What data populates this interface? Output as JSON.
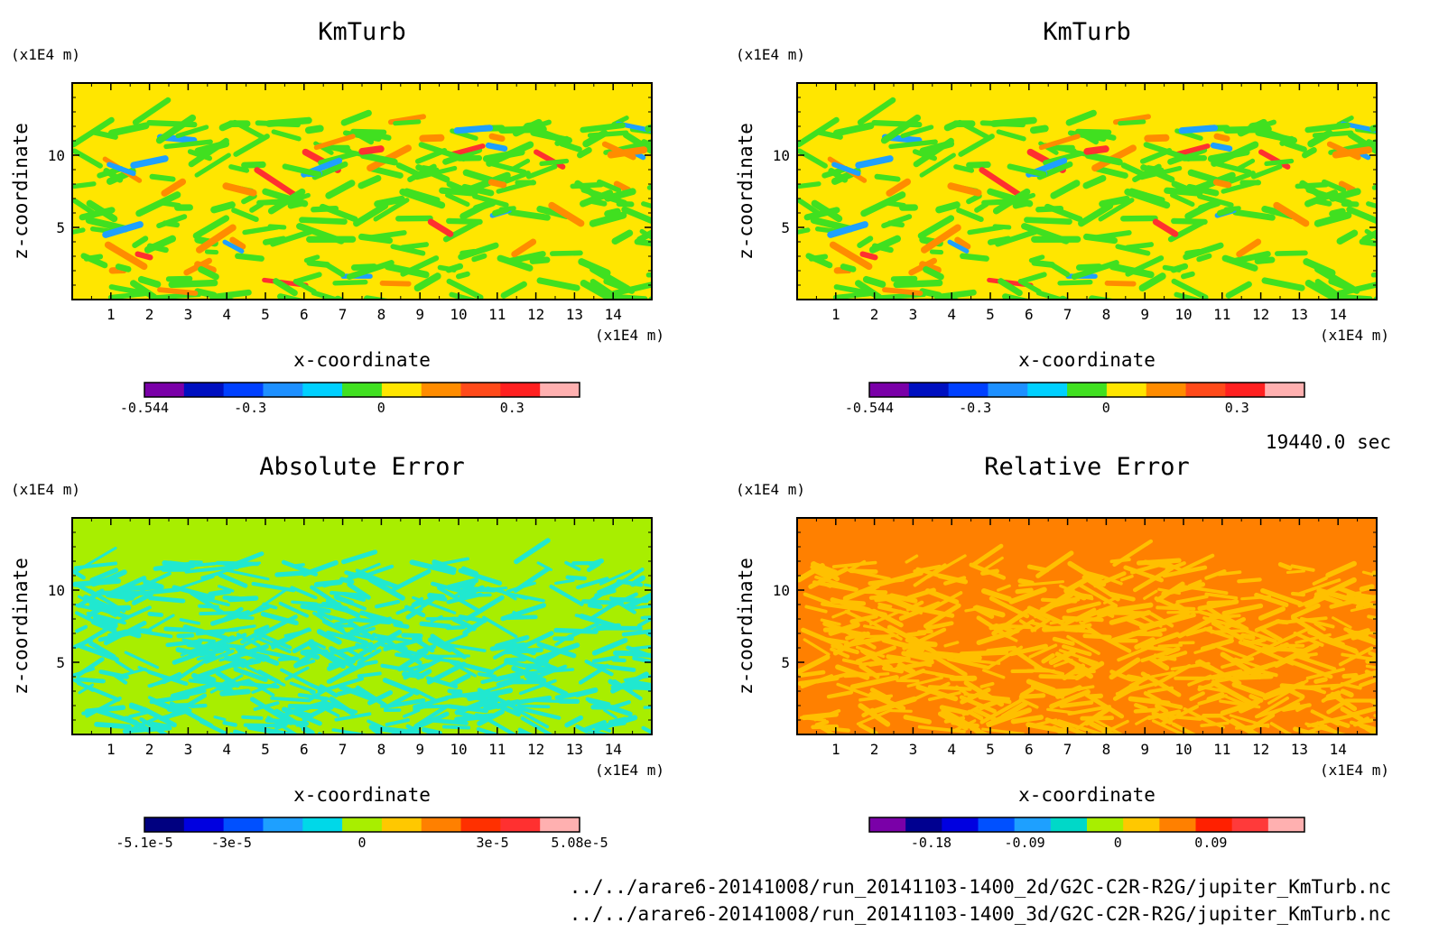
{
  "footer": {
    "time": "19440.0 sec",
    "files": [
      "../../arare6-20141008/run_20141103-1400_2d/G2C-C2R-R2G/jupiter_KmTurb.nc",
      "../../arare6-20141008/run_20141103-1400_3d/G2C-C2R-R2G/jupiter_KmTurb.nc"
    ]
  },
  "chart_data": [
    {
      "type": "heatmap",
      "title": "KmTurb",
      "xlabel": "x-coordinate",
      "ylabel": "z-coordinate",
      "x_unit": "(x1E4 m)",
      "y_unit": "(x1E4 m)",
      "xlim": [
        0,
        15
      ],
      "ylim": [
        0,
        15
      ],
      "x_ticks": [
        "1",
        "2",
        "3",
        "4",
        "5",
        "6",
        "7",
        "8",
        "9",
        "10",
        "11",
        "12",
        "13",
        "14"
      ],
      "y_ticks": [
        "5",
        "10"
      ],
      "background_color": "#ffe600",
      "pattern_colors": [
        "#40e020",
        "#ff8c00",
        "#ff3030",
        "#1ea0ff"
      ],
      "colorbar": {
        "colors": [
          "#7a00a8",
          "#0010c0",
          "#0040ff",
          "#1e90ff",
          "#00d0ff",
          "#40e020",
          "#ffe600",
          "#ff8c00",
          "#ff4a1a",
          "#ff2020",
          "#ffb0b0"
        ],
        "tick_labels": [
          "-0.544",
          "-0.3",
          "0",
          "0.3"
        ],
        "tick_fractions": [
          0.0,
          0.243,
          0.544,
          0.845
        ]
      }
    },
    {
      "type": "heatmap",
      "title": "KmTurb",
      "xlabel": "x-coordinate",
      "ylabel": "z-coordinate",
      "x_unit": "(x1E4 m)",
      "y_unit": "(x1E4 m)",
      "xlim": [
        0,
        15
      ],
      "ylim": [
        0,
        15
      ],
      "x_ticks": [
        "1",
        "2",
        "3",
        "4",
        "5",
        "6",
        "7",
        "8",
        "9",
        "10",
        "11",
        "12",
        "13",
        "14"
      ],
      "y_ticks": [
        "5",
        "10"
      ],
      "background_color": "#ffe600",
      "pattern_colors": [
        "#40e020",
        "#ff8c00",
        "#ff3030",
        "#1ea0ff"
      ],
      "colorbar": {
        "colors": [
          "#7a00a8",
          "#0010c0",
          "#0040ff",
          "#1e90ff",
          "#00d0ff",
          "#40e020",
          "#ffe600",
          "#ff8c00",
          "#ff4a1a",
          "#ff2020",
          "#ffb0b0"
        ],
        "tick_labels": [
          "-0.544",
          "-0.3",
          "0",
          "0.3"
        ],
        "tick_fractions": [
          0.0,
          0.243,
          0.544,
          0.845
        ]
      }
    },
    {
      "type": "heatmap",
      "title": "Absolute Error",
      "xlabel": "x-coordinate",
      "ylabel": "z-coordinate",
      "x_unit": "(x1E4 m)",
      "y_unit": "(x1E4 m)",
      "xlim": [
        0,
        15
      ],
      "ylim": [
        0,
        15
      ],
      "x_ticks": [
        "1",
        "2",
        "3",
        "4",
        "5",
        "6",
        "7",
        "8",
        "9",
        "10",
        "11",
        "12",
        "13",
        "14"
      ],
      "y_ticks": [
        "5",
        "10"
      ],
      "background_color": "#a8ee00",
      "pattern_colors": [
        "#20e8d0"
      ],
      "colorbar": {
        "colors": [
          "#000080",
          "#0000e0",
          "#0050ff",
          "#1ea0ff",
          "#00d8e8",
          "#a8ee00",
          "#ffc800",
          "#ff8000",
          "#ff3000",
          "#ff3030",
          "#ffb0b0"
        ],
        "tick_labels": [
          "-5.1e-5",
          "-3e-5",
          "0",
          "3e-5",
          "5.08e-5"
        ],
        "tick_fractions": [
          0.0,
          0.2,
          0.5,
          0.8,
          1.0
        ]
      }
    },
    {
      "type": "heatmap",
      "title": "Relative Error",
      "xlabel": "x-coordinate",
      "ylabel": "z-coordinate",
      "x_unit": "(x1E4 m)",
      "y_unit": "(x1E4 m)",
      "xlim": [
        0,
        15
      ],
      "ylim": [
        0,
        15
      ],
      "x_ticks": [
        "1",
        "2",
        "3",
        "4",
        "5",
        "6",
        "7",
        "8",
        "9",
        "10",
        "11",
        "12",
        "13",
        "14"
      ],
      "y_ticks": [
        "5",
        "10"
      ],
      "background_color": "#ff8000",
      "pattern_colors": [
        "#ffc000"
      ],
      "colorbar": {
        "colors": [
          "#7a00a8",
          "#000090",
          "#0000e0",
          "#0050ff",
          "#1ea0ff",
          "#00d8c8",
          "#a8ee00",
          "#ffc800",
          "#ff8000",
          "#ff2000",
          "#ff3a3a",
          "#ffb0b0"
        ],
        "tick_labels": [
          "-0.18",
          "-0.09",
          "0",
          "0.09"
        ],
        "tick_fractions": [
          0.142,
          0.357,
          0.571,
          0.785
        ]
      }
    }
  ]
}
